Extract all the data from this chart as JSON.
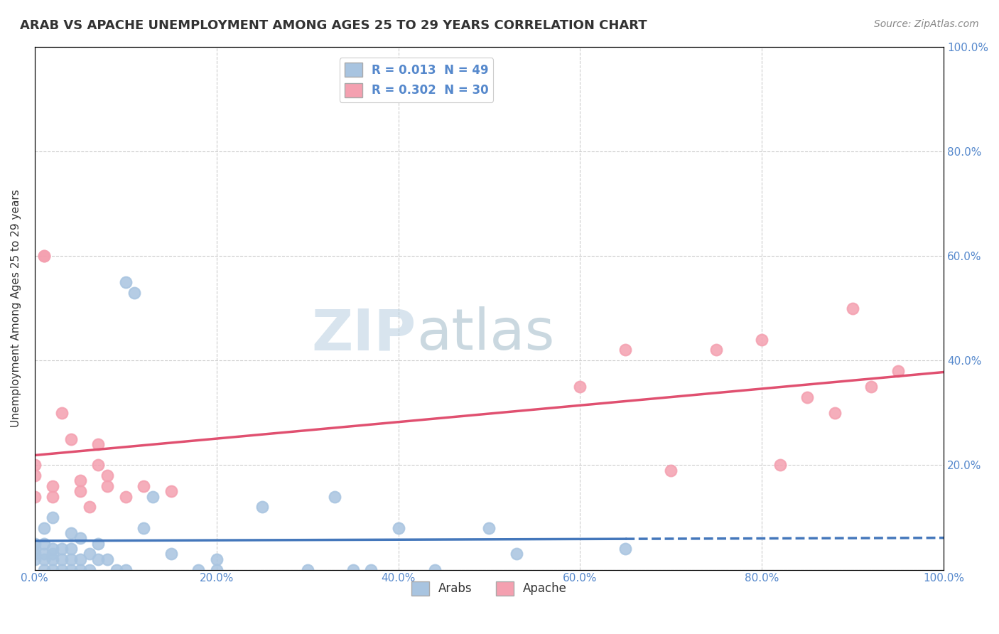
{
  "title": "ARAB VS APACHE UNEMPLOYMENT AMONG AGES 25 TO 29 YEARS CORRELATION CHART",
  "source": "Source: ZipAtlas.com",
  "ylabel": "Unemployment Among Ages 25 to 29 years",
  "xlabel": "",
  "xlim": [
    0.0,
    1.0
  ],
  "ylim": [
    0.0,
    1.0
  ],
  "xticks": [
    0.0,
    0.2,
    0.4,
    0.6,
    0.8,
    1.0
  ],
  "yticks": [
    0.0,
    0.2,
    0.4,
    0.6,
    0.8,
    1.0
  ],
  "xticklabels": [
    "0.0%",
    "20.0%",
    "40.0%",
    "60.0%",
    "80.0%",
    "100.0%"
  ],
  "yticklabels_right": [
    "",
    "20.0%",
    "40.0%",
    "60.0%",
    "80.0%",
    "100.0%"
  ],
  "legend_labels": [
    "Arabs",
    "Apache"
  ],
  "arab_r": "0.013",
  "arab_n": "49",
  "apache_r": "0.302",
  "apache_n": "30",
  "arab_color": "#a8c4e0",
  "apache_color": "#f4a0b0",
  "arab_line_color": "#4477bb",
  "apache_line_color": "#e05070",
  "background_color": "#ffffff",
  "grid_color": "#cccccc",
  "title_color": "#333333",
  "label_color": "#5588cc",
  "arab_x": [
    0.0,
    0.0,
    0.0,
    0.0,
    0.01,
    0.01,
    0.01,
    0.01,
    0.01,
    0.02,
    0.02,
    0.02,
    0.02,
    0.02,
    0.03,
    0.03,
    0.03,
    0.04,
    0.04,
    0.04,
    0.04,
    0.05,
    0.05,
    0.05,
    0.06,
    0.06,
    0.07,
    0.07,
    0.08,
    0.09,
    0.1,
    0.1,
    0.11,
    0.12,
    0.13,
    0.15,
    0.18,
    0.2,
    0.2,
    0.25,
    0.3,
    0.33,
    0.35,
    0.37,
    0.4,
    0.44,
    0.5,
    0.53,
    0.65
  ],
  "arab_y": [
    0.02,
    0.03,
    0.04,
    0.05,
    0.0,
    0.02,
    0.03,
    0.05,
    0.08,
    0.0,
    0.02,
    0.03,
    0.04,
    0.1,
    0.0,
    0.02,
    0.04,
    0.0,
    0.02,
    0.04,
    0.07,
    0.0,
    0.02,
    0.06,
    0.0,
    0.03,
    0.02,
    0.05,
    0.02,
    0.0,
    0.0,
    0.55,
    0.53,
    0.08,
    0.14,
    0.03,
    0.0,
    0.0,
    0.02,
    0.12,
    0.0,
    0.14,
    0.0,
    0.0,
    0.08,
    0.0,
    0.08,
    0.03,
    0.04
  ],
  "apache_x": [
    0.0,
    0.0,
    0.0,
    0.01,
    0.01,
    0.02,
    0.02,
    0.03,
    0.04,
    0.05,
    0.05,
    0.06,
    0.07,
    0.07,
    0.08,
    0.08,
    0.1,
    0.12,
    0.15,
    0.6,
    0.65,
    0.7,
    0.75,
    0.8,
    0.82,
    0.85,
    0.88,
    0.9,
    0.92,
    0.95
  ],
  "apache_y": [
    0.2,
    0.18,
    0.14,
    0.6,
    0.6,
    0.14,
    0.16,
    0.3,
    0.25,
    0.15,
    0.17,
    0.12,
    0.2,
    0.24,
    0.16,
    0.18,
    0.14,
    0.16,
    0.15,
    0.35,
    0.42,
    0.19,
    0.42,
    0.44,
    0.2,
    0.33,
    0.3,
    0.5,
    0.35,
    0.38
  ]
}
